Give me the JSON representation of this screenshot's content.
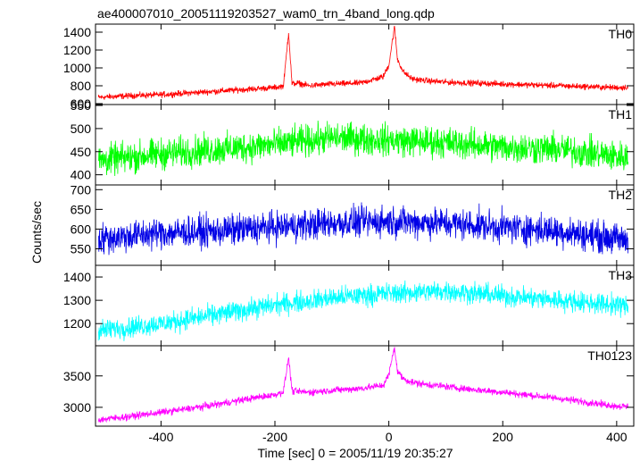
{
  "chart_data": {
    "type": "line",
    "title": "ae400007010_20051119203527_wam0_trn_4band_long.qdp",
    "xlabel": "Time [sec] 0 = 2005/11/19 20:35:27",
    "ylabel": "Counts/sec",
    "xlim": [
      -515,
      430
    ],
    "xticks": [
      -400,
      -200,
      0,
      200,
      400
    ],
    "grid": false,
    "panels": [
      {
        "name": "TH0",
        "color": "#ff0000",
        "ylim": [
          590,
          1490
        ],
        "yticks": [
          600,
          800,
          1000,
          1200,
          1400
        ],
        "x": [
          -510,
          -450,
          -400,
          -350,
          -300,
          -250,
          -200,
          -185,
          -176,
          -170,
          -160,
          -140,
          -100,
          -50,
          -10,
          0,
          5,
          10,
          15,
          25,
          40,
          60,
          100,
          150,
          200,
          250,
          300,
          350,
          400,
          420
        ],
        "values": [
          670,
          690,
          700,
          720,
          740,
          760,
          780,
          800,
          1400,
          820,
          830,
          800,
          820,
          830,
          900,
          1030,
          1250,
          1460,
          1100,
          960,
          880,
          860,
          840,
          830,
          820,
          810,
          800,
          790,
          780,
          785
        ],
        "noise": 30
      },
      {
        "name": "TH1",
        "color": "#00ff00",
        "ylim": [
          378,
          552
        ],
        "yticks": [
          400,
          450,
          500,
          550
        ],
        "x": [
          -510,
          -400,
          -300,
          -200,
          -100,
          0,
          100,
          200,
          300,
          400,
          420
        ],
        "values": [
          430,
          445,
          455,
          465,
          480,
          475,
          470,
          460,
          455,
          440,
          438
        ],
        "noise": 30
      },
      {
        "name": "TH2",
        "color": "#0000e6",
        "ylim": [
          508,
          712
        ],
        "yticks": [
          550,
          600,
          650,
          700
        ],
        "x": [
          -510,
          -400,
          -300,
          -200,
          -100,
          0,
          100,
          200,
          300,
          400,
          420
        ],
        "values": [
          575,
          590,
          595,
          605,
          615,
          620,
          615,
          605,
          595,
          575,
          572
        ],
        "noise": 35
      },
      {
        "name": "TH3",
        "color": "#00ffff",
        "ylim": [
          1105,
          1450
        ],
        "yticks": [
          1200,
          1300,
          1400
        ],
        "x": [
          -510,
          -400,
          -300,
          -200,
          -100,
          0,
          100,
          200,
          300,
          400,
          420
        ],
        "values": [
          1170,
          1200,
          1240,
          1280,
          1310,
          1330,
          1340,
          1320,
          1300,
          1280,
          1275
        ],
        "noise": 40
      },
      {
        "name": "TH0123",
        "color": "#ff00ff",
        "ylim": [
          2700,
          3980
        ],
        "yticks": [
          3000,
          3500
        ],
        "x": [
          -510,
          -450,
          -400,
          -350,
          -300,
          -250,
          -200,
          -185,
          -176,
          -170,
          -160,
          -140,
          -100,
          -50,
          -10,
          0,
          5,
          10,
          15,
          25,
          40,
          60,
          100,
          150,
          200,
          250,
          300,
          350,
          400,
          420
        ],
        "values": [
          2800,
          2860,
          2920,
          2980,
          3050,
          3130,
          3200,
          3250,
          3800,
          3260,
          3250,
          3240,
          3270,
          3300,
          3350,
          3520,
          3750,
          3950,
          3580,
          3460,
          3400,
          3370,
          3330,
          3280,
          3240,
          3190,
          3140,
          3080,
          3020,
          3010
        ],
        "noise": 50
      }
    ]
  }
}
